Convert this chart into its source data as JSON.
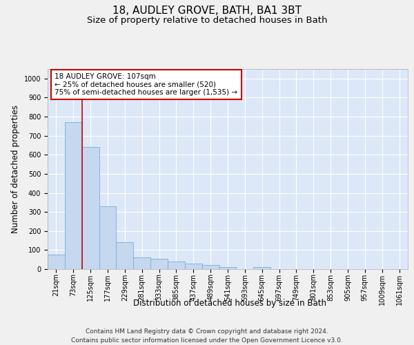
{
  "title": "18, AUDLEY GROVE, BATH, BA1 3BT",
  "subtitle": "Size of property relative to detached houses in Bath",
  "xlabel": "Distribution of detached houses by size in Bath",
  "ylabel": "Number of detached properties",
  "footer_line1": "Contains HM Land Registry data © Crown copyright and database right 2024.",
  "footer_line2": "Contains public sector information licensed under the Open Government Licence v3.0.",
  "categories": [
    "21sqm",
    "73sqm",
    "125sqm",
    "177sqm",
    "229sqm",
    "281sqm",
    "333sqm",
    "385sqm",
    "437sqm",
    "489sqm",
    "541sqm",
    "593sqm",
    "645sqm",
    "697sqm",
    "749sqm",
    "801sqm",
    "853sqm",
    "905sqm",
    "957sqm",
    "1009sqm",
    "1061sqm"
  ],
  "bar_values": [
    75,
    770,
    640,
    330,
    140,
    60,
    55,
    40,
    30,
    20,
    10,
    0,
    10,
    0,
    0,
    0,
    0,
    0,
    0,
    0,
    0
  ],
  "bar_color": "#c5d8f0",
  "bar_edge_color": "#7aadd4",
  "background_color": "#dce8f8",
  "grid_color": "#ffffff",
  "fig_background": "#f0f0f0",
  "ylim": [
    0,
    1050
  ],
  "yticks": [
    0,
    100,
    200,
    300,
    400,
    500,
    600,
    700,
    800,
    900,
    1000
  ],
  "red_line_x": 1.5,
  "annotation_text_line1": "18 AUDLEY GROVE: 107sqm",
  "annotation_text_line2": "← 25% of detached houses are smaller (520)",
  "annotation_text_line3": "75% of semi-detached houses are larger (1,535) →",
  "annotation_box_color": "#ffffff",
  "annotation_border_color": "#cc0000",
  "title_fontsize": 11,
  "subtitle_fontsize": 9.5,
  "axis_label_fontsize": 8.5,
  "tick_fontsize": 7,
  "annotation_fontsize": 7.5,
  "footer_fontsize": 6.5
}
